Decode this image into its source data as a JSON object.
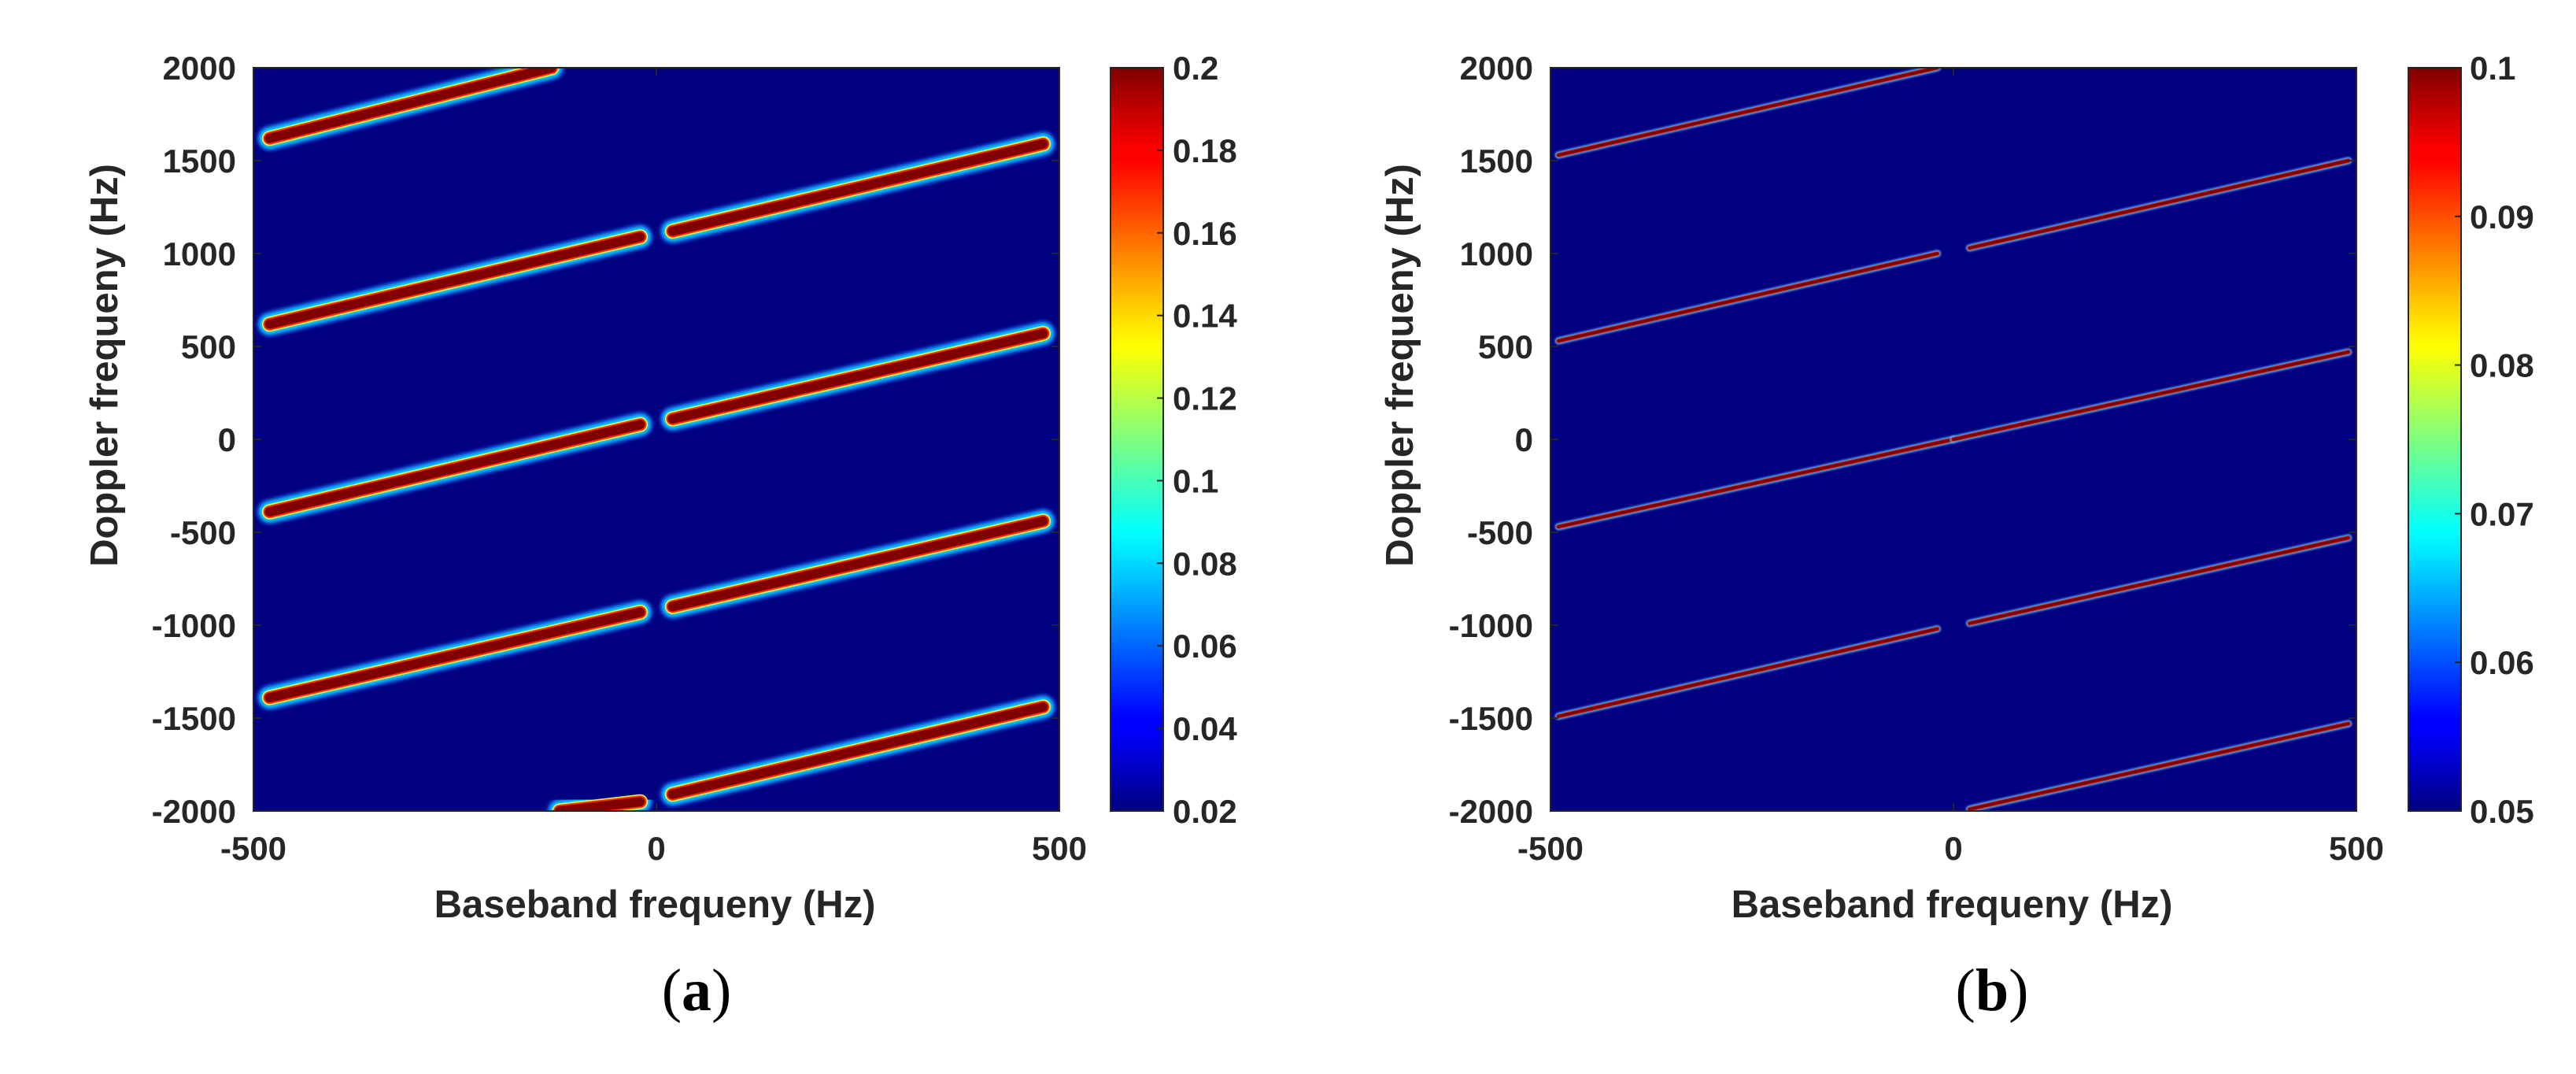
{
  "chart_data": [
    {
      "type": "heatmap",
      "panel_label": "(a)",
      "panel_letter": "a",
      "xlabel": "Baseband frequeny (Hz)",
      "ylabel": "Doppler frequeny (Hz)",
      "xlim": [
        -500,
        500
      ],
      "ylim": [
        -2000,
        2000
      ],
      "x_ticks": [
        -500,
        0,
        500
      ],
      "x_tick_labels": [
        "-500",
        "0",
        "500"
      ],
      "y_ticks": [
        2000,
        1500,
        1000,
        500,
        0,
        -500,
        -1000,
        -1500,
        -2000
      ],
      "y_tick_labels": [
        "2000",
        "1500",
        "1000",
        "500",
        "0",
        "-500",
        "-1000",
        "-1500",
        "-2000"
      ],
      "colorbar": {
        "range": [
          0.02,
          0.2
        ],
        "ticks": [
          0.2,
          0.18,
          0.16,
          0.14,
          0.12,
          0.1,
          0.08,
          0.06,
          0.04,
          0.02
        ],
        "tick_labels": [
          "0.2",
          "0.18",
          "0.16",
          "0.14",
          "0.12",
          "0.1",
          "0.08",
          "0.06",
          "0.04",
          "0.02"
        ],
        "colormap": "jet"
      },
      "background_value": 0.02,
      "streak_value": 0.2,
      "streak_style": "wide",
      "streaks": [
        {
          "x": [
            -480,
            -130
          ],
          "y": [
            1620,
            2000
          ]
        },
        {
          "x": [
            -480,
            -20
          ],
          "y": [
            620,
            1090
          ]
        },
        {
          "x": [
            20,
            480
          ],
          "y": [
            1120,
            1590
          ]
        },
        {
          "x": [
            -480,
            -20
          ],
          "y": [
            -390,
            80
          ]
        },
        {
          "x": [
            20,
            480
          ],
          "y": [
            110,
            570
          ]
        },
        {
          "x": [
            -480,
            -20
          ],
          "y": [
            -1390,
            -930
          ]
        },
        {
          "x": [
            20,
            480
          ],
          "y": [
            -900,
            -440
          ]
        },
        {
          "x": [
            -120,
            -20
          ],
          "y": [
            -2000,
            -1950
          ]
        },
        {
          "x": [
            20,
            480
          ],
          "y": [
            -1910,
            -1440
          ]
        }
      ]
    },
    {
      "type": "heatmap",
      "panel_label": "(b)",
      "panel_letter": "b",
      "xlabel": "Baseband frequeny (Hz)",
      "ylabel": "Doppler frequeny (Hz)",
      "xlim": [
        -500,
        500
      ],
      "ylim": [
        -2000,
        2000
      ],
      "x_ticks": [
        -500,
        0,
        500
      ],
      "x_tick_labels": [
        "-500",
        "0",
        "500"
      ],
      "y_ticks": [
        2000,
        1500,
        1000,
        500,
        0,
        -500,
        -1000,
        -1500,
        -2000
      ],
      "y_tick_labels": [
        "2000",
        "1500",
        "1000",
        "500",
        "0",
        "-500",
        "-1000",
        "-1500",
        "-2000"
      ],
      "colorbar": {
        "range": [
          0.05,
          0.1
        ],
        "ticks": [
          0.1,
          0.09,
          0.08,
          0.07,
          0.06,
          0.05
        ],
        "tick_labels": [
          "0.1",
          "0.09",
          "0.08",
          "0.07",
          "0.06",
          "0.05"
        ],
        "colormap": "jet"
      },
      "background_value": 0.05,
      "streak_value": 0.1,
      "streak_style": "thin",
      "streaks": [
        {
          "x": [
            -490,
            -20
          ],
          "y": [
            1530,
            2000
          ]
        },
        {
          "x": [
            -490,
            -20
          ],
          "y": [
            530,
            1000
          ]
        },
        {
          "x": [
            20,
            490
          ],
          "y": [
            1030,
            1500
          ]
        },
        {
          "x": [
            -490,
            0
          ],
          "y": [
            -470,
            0
          ]
        },
        {
          "x": [
            0,
            490
          ],
          "y": [
            0,
            470
          ]
        },
        {
          "x": [
            -490,
            -20
          ],
          "y": [
            -1490,
            -1020
          ]
        },
        {
          "x": [
            20,
            490
          ],
          "y": [
            -990,
            -530
          ]
        },
        {
          "x": [
            20,
            490
          ],
          "y": [
            -1990,
            -1530
          ]
        }
      ]
    }
  ]
}
